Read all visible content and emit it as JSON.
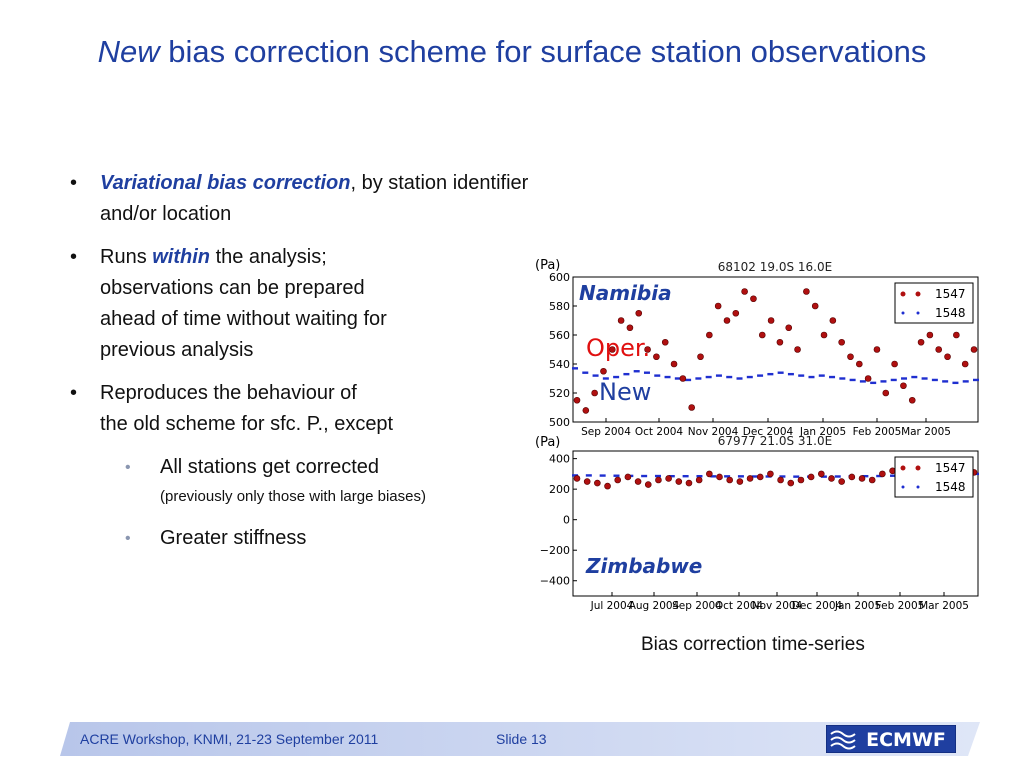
{
  "title": {
    "emph": "New",
    "rest": " bias correction scheme for surface station observations"
  },
  "bullets": {
    "b1": {
      "hl": "Variational bias correction",
      "rest": ", by station identifier and/or location"
    },
    "b2": {
      "pre": "Runs ",
      "hl": "within",
      "rest": " the analysis;",
      "l2": "observations can be prepared",
      "l3": "ahead of time without waiting for",
      "l4": "previous analysis"
    },
    "b3": {
      "l1": "Reproduces the behaviour of",
      "l2": "the old scheme for sfc. P., except"
    },
    "s1": {
      "text": "All stations get corrected",
      "note": "(previously only those with large biases)"
    },
    "s2": {
      "text": "Greater stiffness"
    }
  },
  "chart_data": [
    {
      "type": "scatter",
      "title": "68102 19.0S 16.0E",
      "ylabel": "(Pa)",
      "ylim": [
        500,
        600
      ],
      "yticks": [
        "500",
        "520",
        "540",
        "560",
        "580",
        "600"
      ],
      "xtick_labels": [
        "Sep 2004",
        "Oct 2004",
        "Nov 2004",
        "Dec 2004",
        "Jan 2005",
        "Feb 2005",
        "Mar 2005"
      ],
      "legend": [
        "1547",
        "1548"
      ],
      "annotations": {
        "station": "Namibia",
        "oper": "Oper.",
        "new": "New"
      },
      "series": [
        {
          "name": "1547",
          "values": [
            515,
            508,
            520,
            535,
            550,
            570,
            565,
            575,
            550,
            545,
            555,
            540,
            530,
            510,
            545,
            560,
            580,
            570,
            575,
            590,
            585,
            560,
            570,
            555,
            565,
            550,
            590,
            580,
            560,
            570,
            555,
            545,
            540,
            530,
            550,
            520,
            540,
            525,
            515,
            555,
            560,
            550,
            545,
            560,
            540,
            550
          ]
        },
        {
          "name": "1548",
          "values": [
            537,
            534,
            532,
            530,
            531,
            533,
            535,
            534,
            532,
            531,
            530,
            529,
            530,
            531,
            532,
            531,
            530,
            531,
            532,
            533,
            534,
            533,
            532,
            531,
            532,
            531,
            530,
            529,
            528,
            527,
            528,
            529,
            530,
            531,
            530,
            529,
            528,
            527,
            528,
            529
          ]
        }
      ]
    },
    {
      "type": "scatter",
      "title": "67977 21.0S 31.0E",
      "ylabel": "(Pa)",
      "ylim": [
        -500,
        450
      ],
      "yticks": [
        "400",
        "200",
        "0",
        "−200",
        "−400"
      ],
      "xtick_labels": [
        "Jul 2004",
        "Aug 2004",
        "Sep 2004",
        "Oct 2004",
        "Nov 2004",
        "Dec 2004",
        "Jan 2005",
        "Feb 2005",
        "Mar 2005"
      ],
      "legend": [
        "1547",
        "1548"
      ],
      "annotations": {
        "station": "Zimbabwe"
      },
      "series": [
        {
          "name": "1547",
          "values": [
            270,
            250,
            240,
            220,
            260,
            280,
            250,
            230,
            260,
            270,
            250,
            240,
            260,
            300,
            280,
            260,
            250,
            270,
            280,
            300,
            260,
            240,
            260,
            280,
            300,
            270,
            250,
            280,
            270,
            260,
            300,
            320,
            340,
            330,
            310,
            290,
            280,
            300,
            320,
            310
          ]
        },
        {
          "name": "1548",
          "values": [
            290,
            290,
            289,
            288,
            287,
            286,
            286,
            285,
            285,
            285,
            284,
            284,
            284,
            283,
            283,
            283,
            282,
            282,
            282,
            283,
            284,
            285,
            286,
            288,
            290,
            292,
            294,
            296,
            298,
            300
          ]
        }
      ]
    }
  ],
  "caption": "Bias correction time-series",
  "footer": {
    "workshop": "ACRE Workshop, KNMI, 21-23 September 2011",
    "slide": "Slide 13",
    "logo": "ECMWF"
  },
  "colors": {
    "title": "#1f3fa0",
    "series1547": "#b01010",
    "series1548": "#1f2fd0",
    "oper": "#e01010"
  }
}
